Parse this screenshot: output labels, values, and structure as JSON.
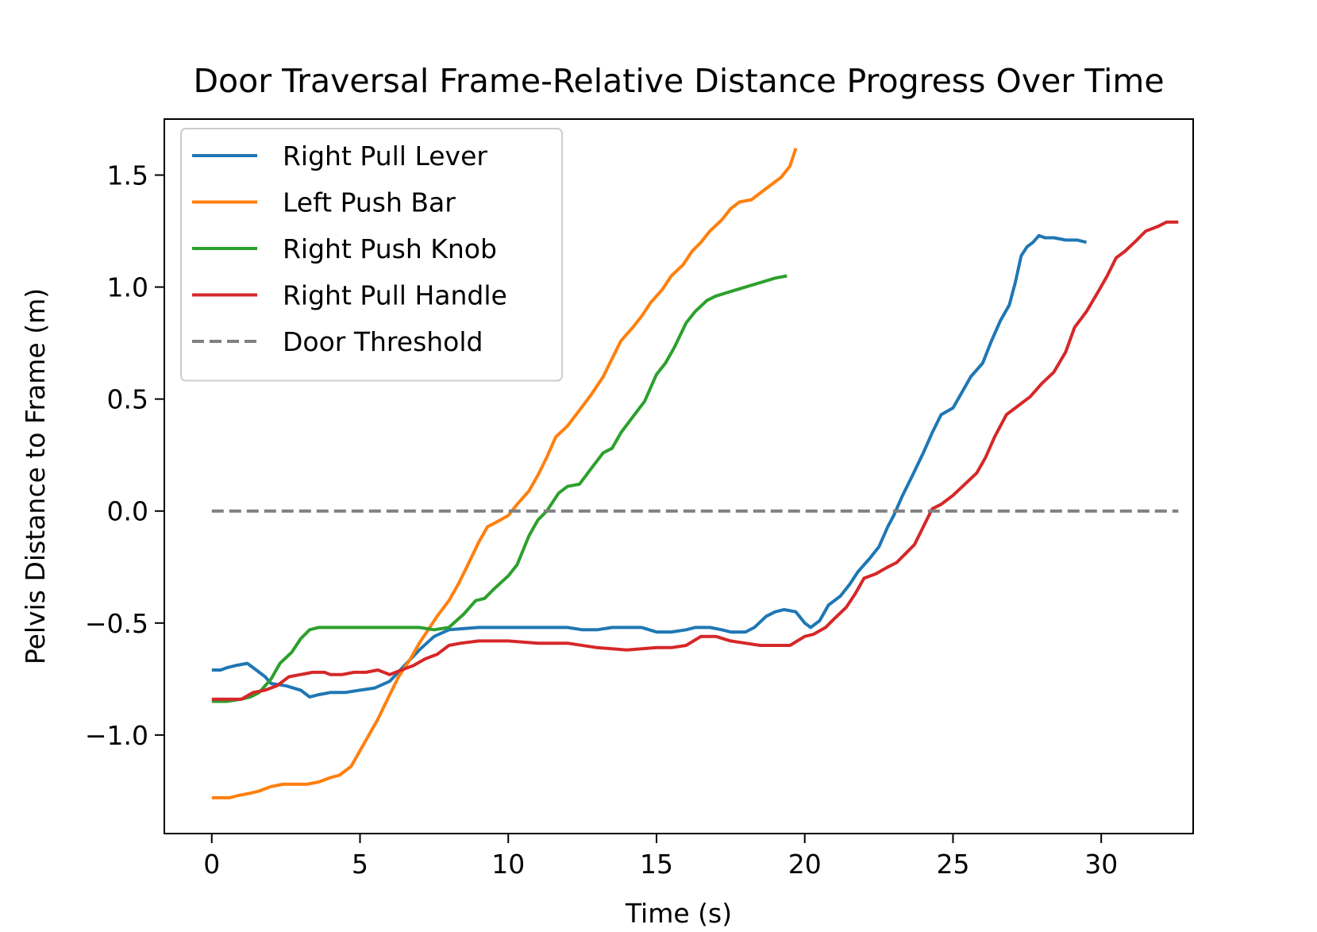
{
  "chart_data": {
    "type": "line",
    "title": "Door Traversal Frame-Relative Distance Progress Over Time",
    "xlabel": "Time (s)",
    "ylabel": "Pelvis Distance to Frame (m)",
    "xlim": [
      -1.6,
      33.1
    ],
    "ylim": [
      -1.44,
      1.75
    ],
    "xticks": [
      0,
      5,
      10,
      15,
      20,
      25,
      30
    ],
    "xtick_labels": [
      "0",
      "5",
      "10",
      "15",
      "20",
      "25",
      "30"
    ],
    "yticks": [
      -1.0,
      -0.5,
      0.0,
      0.5,
      1.0,
      1.5
    ],
    "ytick_labels": [
      "−1.0",
      "−0.5",
      "0.0",
      "0.5",
      "1.0",
      "1.5"
    ],
    "grid": false,
    "legend_position": "top-left",
    "series": [
      {
        "name": "Right Pull Lever",
        "color": "#1f77b4",
        "style": "solid",
        "points": [
          [
            0,
            -0.71
          ],
          [
            0.3,
            -0.71
          ],
          [
            0.5,
            -0.7
          ],
          [
            0.8,
            -0.69
          ],
          [
            1.2,
            -0.68
          ],
          [
            1.5,
            -0.71
          ],
          [
            1.8,
            -0.74
          ],
          [
            2.0,
            -0.77
          ],
          [
            2.5,
            -0.78
          ],
          [
            3.0,
            -0.8
          ],
          [
            3.3,
            -0.83
          ],
          [
            3.6,
            -0.82
          ],
          [
            4.0,
            -0.81
          ],
          [
            4.5,
            -0.81
          ],
          [
            5.0,
            -0.8
          ],
          [
            5.5,
            -0.79
          ],
          [
            6.0,
            -0.76
          ],
          [
            6.5,
            -0.69
          ],
          [
            7.0,
            -0.62
          ],
          [
            7.5,
            -0.56
          ],
          [
            8.0,
            -0.53
          ],
          [
            9.0,
            -0.52
          ],
          [
            10.0,
            -0.52
          ],
          [
            11.0,
            -0.52
          ],
          [
            12.0,
            -0.52
          ],
          [
            12.5,
            -0.53
          ],
          [
            13.0,
            -0.53
          ],
          [
            13.5,
            -0.52
          ],
          [
            14.0,
            -0.52
          ],
          [
            14.5,
            -0.52
          ],
          [
            15.0,
            -0.54
          ],
          [
            15.5,
            -0.54
          ],
          [
            16.0,
            -0.53
          ],
          [
            16.3,
            -0.52
          ],
          [
            16.8,
            -0.52
          ],
          [
            17.2,
            -0.53
          ],
          [
            17.5,
            -0.54
          ],
          [
            18.0,
            -0.54
          ],
          [
            18.3,
            -0.52
          ],
          [
            18.7,
            -0.47
          ],
          [
            19.0,
            -0.45
          ],
          [
            19.3,
            -0.44
          ],
          [
            19.7,
            -0.45
          ],
          [
            20.0,
            -0.5
          ],
          [
            20.2,
            -0.52
          ],
          [
            20.5,
            -0.49
          ],
          [
            20.8,
            -0.42
          ],
          [
            21.2,
            -0.38
          ],
          [
            21.5,
            -0.33
          ],
          [
            21.8,
            -0.27
          ],
          [
            22.2,
            -0.21
          ],
          [
            22.5,
            -0.16
          ],
          [
            22.8,
            -0.07
          ],
          [
            23.0,
            -0.02
          ],
          [
            23.3,
            0.07
          ],
          [
            23.6,
            0.15
          ],
          [
            24.0,
            0.26
          ],
          [
            24.3,
            0.35
          ],
          [
            24.6,
            0.43
          ],
          [
            25.0,
            0.46
          ],
          [
            25.3,
            0.53
          ],
          [
            25.6,
            0.6
          ],
          [
            26.0,
            0.66
          ],
          [
            26.3,
            0.76
          ],
          [
            26.6,
            0.85
          ],
          [
            26.9,
            0.92
          ],
          [
            27.1,
            1.02
          ],
          [
            27.3,
            1.14
          ],
          [
            27.5,
            1.18
          ],
          [
            27.7,
            1.2
          ],
          [
            27.9,
            1.23
          ],
          [
            28.1,
            1.22
          ],
          [
            28.4,
            1.22
          ],
          [
            28.8,
            1.21
          ],
          [
            29.2,
            1.21
          ],
          [
            29.5,
            1.2
          ]
        ]
      },
      {
        "name": "Left Push Bar",
        "color": "#ff7f0e",
        "style": "solid",
        "points": [
          [
            0,
            -1.28
          ],
          [
            0.3,
            -1.28
          ],
          [
            0.6,
            -1.28
          ],
          [
            0.9,
            -1.27
          ],
          [
            1.3,
            -1.26
          ],
          [
            1.6,
            -1.25
          ],
          [
            2.0,
            -1.23
          ],
          [
            2.4,
            -1.22
          ],
          [
            2.8,
            -1.22
          ],
          [
            3.2,
            -1.22
          ],
          [
            3.6,
            -1.21
          ],
          [
            4.0,
            -1.19
          ],
          [
            4.3,
            -1.18
          ],
          [
            4.7,
            -1.14
          ],
          [
            5.0,
            -1.07
          ],
          [
            5.3,
            -1.0
          ],
          [
            5.6,
            -0.93
          ],
          [
            6.0,
            -0.82
          ],
          [
            6.3,
            -0.74
          ],
          [
            6.7,
            -0.66
          ],
          [
            7.0,
            -0.59
          ],
          [
            7.3,
            -0.53
          ],
          [
            7.6,
            -0.47
          ],
          [
            8.0,
            -0.4
          ],
          [
            8.3,
            -0.33
          ],
          [
            8.6,
            -0.25
          ],
          [
            9.0,
            -0.14
          ],
          [
            9.3,
            -0.07
          ],
          [
            9.6,
            -0.05
          ],
          [
            10.0,
            -0.02
          ],
          [
            10.3,
            0.03
          ],
          [
            10.7,
            0.09
          ],
          [
            11.0,
            0.16
          ],
          [
            11.3,
            0.24
          ],
          [
            11.6,
            0.33
          ],
          [
            12.0,
            0.38
          ],
          [
            12.4,
            0.45
          ],
          [
            12.8,
            0.52
          ],
          [
            13.2,
            0.6
          ],
          [
            13.5,
            0.68
          ],
          [
            13.8,
            0.76
          ],
          [
            14.2,
            0.82
          ],
          [
            14.5,
            0.87
          ],
          [
            14.8,
            0.93
          ],
          [
            15.2,
            0.99
          ],
          [
            15.5,
            1.05
          ],
          [
            15.9,
            1.1
          ],
          [
            16.2,
            1.16
          ],
          [
            16.5,
            1.2
          ],
          [
            16.8,
            1.25
          ],
          [
            17.2,
            1.3
          ],
          [
            17.5,
            1.35
          ],
          [
            17.8,
            1.38
          ],
          [
            18.2,
            1.39
          ],
          [
            18.5,
            1.42
          ],
          [
            18.8,
            1.45
          ],
          [
            19.2,
            1.49
          ],
          [
            19.5,
            1.54
          ],
          [
            19.7,
            1.62
          ]
        ]
      },
      {
        "name": "Right Push Knob",
        "color": "#2ca02c",
        "style": "solid",
        "points": [
          [
            0,
            -0.85
          ],
          [
            0.5,
            -0.85
          ],
          [
            1.0,
            -0.84
          ],
          [
            1.3,
            -0.83
          ],
          [
            1.6,
            -0.81
          ],
          [
            2.0,
            -0.75
          ],
          [
            2.3,
            -0.68
          ],
          [
            2.7,
            -0.63
          ],
          [
            3.0,
            -0.57
          ],
          [
            3.3,
            -0.53
          ],
          [
            3.6,
            -0.52
          ],
          [
            4.0,
            -0.52
          ],
          [
            5.0,
            -0.52
          ],
          [
            6.0,
            -0.52
          ],
          [
            6.5,
            -0.52
          ],
          [
            7.0,
            -0.52
          ],
          [
            7.5,
            -0.53
          ],
          [
            8.0,
            -0.52
          ],
          [
            8.5,
            -0.46
          ],
          [
            8.9,
            -0.4
          ],
          [
            9.2,
            -0.39
          ],
          [
            9.5,
            -0.35
          ],
          [
            10.0,
            -0.29
          ],
          [
            10.3,
            -0.24
          ],
          [
            10.7,
            -0.11
          ],
          [
            11.0,
            -0.04
          ],
          [
            11.3,
            0.0
          ],
          [
            11.7,
            0.08
          ],
          [
            12.0,
            0.11
          ],
          [
            12.4,
            0.12
          ],
          [
            12.8,
            0.19
          ],
          [
            13.2,
            0.26
          ],
          [
            13.5,
            0.28
          ],
          [
            13.8,
            0.35
          ],
          [
            14.2,
            0.42
          ],
          [
            14.6,
            0.49
          ],
          [
            15.0,
            0.61
          ],
          [
            15.3,
            0.66
          ],
          [
            15.6,
            0.73
          ],
          [
            16.0,
            0.84
          ],
          [
            16.3,
            0.89
          ],
          [
            16.7,
            0.94
          ],
          [
            17.0,
            0.96
          ],
          [
            17.5,
            0.98
          ],
          [
            18.0,
            1.0
          ],
          [
            18.5,
            1.02
          ],
          [
            19.0,
            1.04
          ],
          [
            19.4,
            1.05
          ]
        ]
      },
      {
        "name": "Right Pull Handle",
        "color": "#d62728",
        "style": "solid",
        "points": [
          [
            0,
            -0.84
          ],
          [
            0.5,
            -0.84
          ],
          [
            1.0,
            -0.84
          ],
          [
            1.4,
            -0.81
          ],
          [
            1.8,
            -0.8
          ],
          [
            2.2,
            -0.78
          ],
          [
            2.6,
            -0.74
          ],
          [
            3.0,
            -0.73
          ],
          [
            3.4,
            -0.72
          ],
          [
            3.8,
            -0.72
          ],
          [
            4.0,
            -0.73
          ],
          [
            4.4,
            -0.73
          ],
          [
            4.8,
            -0.72
          ],
          [
            5.2,
            -0.72
          ],
          [
            5.6,
            -0.71
          ],
          [
            6.0,
            -0.73
          ],
          [
            6.4,
            -0.71
          ],
          [
            6.8,
            -0.69
          ],
          [
            7.2,
            -0.66
          ],
          [
            7.6,
            -0.64
          ],
          [
            8.0,
            -0.6
          ],
          [
            8.4,
            -0.59
          ],
          [
            9.0,
            -0.58
          ],
          [
            10.0,
            -0.58
          ],
          [
            11.0,
            -0.59
          ],
          [
            12.0,
            -0.59
          ],
          [
            13.0,
            -0.61
          ],
          [
            14.0,
            -0.62
          ],
          [
            15.0,
            -0.61
          ],
          [
            15.5,
            -0.61
          ],
          [
            16.0,
            -0.6
          ],
          [
            16.5,
            -0.56
          ],
          [
            17.0,
            -0.56
          ],
          [
            17.5,
            -0.58
          ],
          [
            18.0,
            -0.59
          ],
          [
            18.5,
            -0.6
          ],
          [
            19.0,
            -0.6
          ],
          [
            19.5,
            -0.6
          ],
          [
            20.0,
            -0.56
          ],
          [
            20.3,
            -0.55
          ],
          [
            20.7,
            -0.52
          ],
          [
            21.0,
            -0.48
          ],
          [
            21.4,
            -0.43
          ],
          [
            21.7,
            -0.37
          ],
          [
            22.0,
            -0.3
          ],
          [
            22.4,
            -0.28
          ],
          [
            22.8,
            -0.25
          ],
          [
            23.1,
            -0.23
          ],
          [
            23.4,
            -0.19
          ],
          [
            23.7,
            -0.15
          ],
          [
            24.0,
            -0.07
          ],
          [
            24.3,
            0.01
          ],
          [
            24.6,
            0.03
          ],
          [
            25.0,
            0.07
          ],
          [
            25.4,
            0.12
          ],
          [
            25.8,
            0.17
          ],
          [
            26.1,
            0.24
          ],
          [
            26.4,
            0.33
          ],
          [
            26.8,
            0.43
          ],
          [
            27.2,
            0.47
          ],
          [
            27.6,
            0.51
          ],
          [
            28.0,
            0.57
          ],
          [
            28.4,
            0.62
          ],
          [
            28.8,
            0.71
          ],
          [
            29.1,
            0.82
          ],
          [
            29.5,
            0.89
          ],
          [
            29.9,
            0.98
          ],
          [
            30.2,
            1.05
          ],
          [
            30.5,
            1.13
          ],
          [
            30.8,
            1.16
          ],
          [
            31.2,
            1.21
          ],
          [
            31.5,
            1.25
          ],
          [
            31.9,
            1.27
          ],
          [
            32.2,
            1.29
          ],
          [
            32.6,
            1.29
          ]
        ]
      },
      {
        "name": "Door Threshold",
        "color": "#808080",
        "style": "dashed",
        "points": [
          [
            0,
            0
          ],
          [
            32.6,
            0
          ]
        ]
      }
    ]
  }
}
